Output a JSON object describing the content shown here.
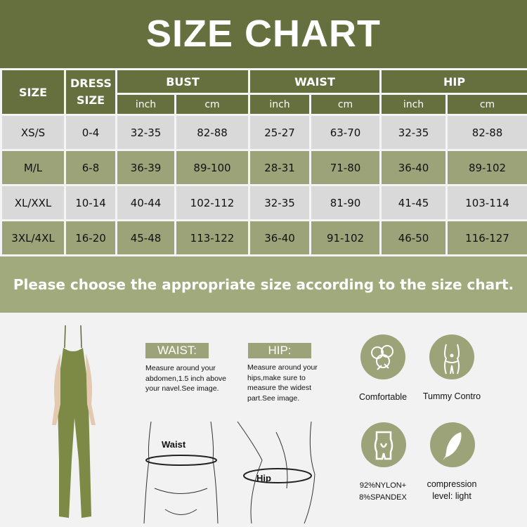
{
  "title": "SIZE CHART",
  "colors": {
    "header": "#66703f",
    "row_gray": "#d9d9d9",
    "row_olive": "#9da378",
    "banner": "#a1aa7c",
    "product": "#7d8a45"
  },
  "table": {
    "headers": {
      "size": "SIZE",
      "dress_size": "DRESS SIZE",
      "bust": "BUST",
      "waist": "WAIST",
      "hip": "HIP"
    },
    "units": [
      "inch",
      "cm",
      "inch",
      "cm",
      "inch",
      "cm"
    ],
    "rows": [
      [
        "XS/S",
        "0-4",
        "32-35",
        "82-88",
        "25-27",
        "63-70",
        "32-35",
        "82-88"
      ],
      [
        "M/L",
        "6-8",
        "36-39",
        "89-100",
        "28-31",
        "71-80",
        "36-40",
        "89-102"
      ],
      [
        "XL/XXL",
        "10-14",
        "40-44",
        "102-112",
        "32-35",
        "81-90",
        "41-45",
        "103-114"
      ],
      [
        "3XL/4XL",
        "16-20",
        "45-48",
        "113-122",
        "36-40",
        "91-102",
        "46-50",
        "116-127"
      ]
    ]
  },
  "banner": "Please choose the appropriate size according to the size chart.",
  "guide": {
    "waist": {
      "label": "WAIST:",
      "text": "Measure around your abdomen,1.5 inch above your navel.See image.",
      "diagram_label": "Waist"
    },
    "hip": {
      "label": "HIP:",
      "text": "Measure around your hips,make sure to measure the widest part.See image.",
      "diagram_label": "Hip"
    }
  },
  "features": [
    {
      "icon": "cotton-icon",
      "caption": "Comfortable"
    },
    {
      "icon": "tummy-icon",
      "caption": "Tummy Contro"
    },
    {
      "icon": "shapewear-icon",
      "caption": "92%NYLON+ 8%SPANDEX"
    },
    {
      "icon": "feather-icon",
      "caption": "compression level: light"
    }
  ]
}
